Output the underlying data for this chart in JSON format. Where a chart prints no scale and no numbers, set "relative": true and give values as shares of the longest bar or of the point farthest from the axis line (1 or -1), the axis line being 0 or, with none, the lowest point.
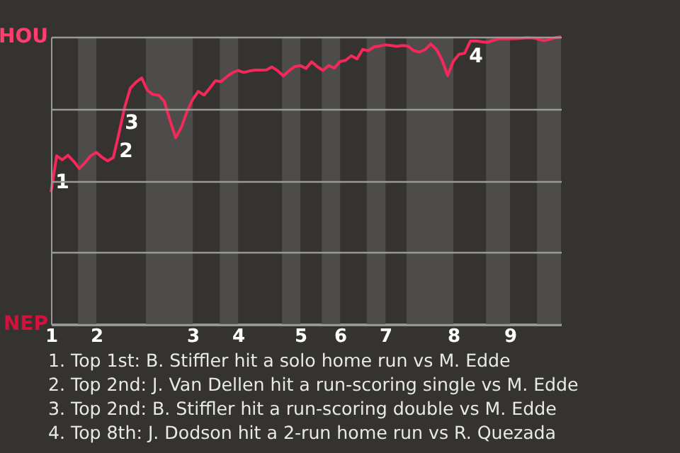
{
  "chart_data": {
    "type": "line",
    "relative": true,
    "categories": [
      "1",
      null,
      null,
      null,
      null,
      null,
      null,
      null,
      "2",
      null,
      null,
      null,
      null,
      null,
      null,
      null,
      null,
      null,
      null,
      null,
      null,
      null,
      null,
      null,
      null,
      "3",
      null,
      null,
      null,
      null,
      null,
      null,
      null,
      "4",
      null,
      null,
      null,
      null,
      null,
      null,
      null,
      null,
      null,
      null,
      "5",
      null,
      null,
      null,
      null,
      null,
      null,
      "6",
      null,
      null,
      null,
      null,
      null,
      null,
      null,
      "7",
      null,
      null,
      null,
      null,
      null,
      null,
      null,
      null,
      null,
      null,
      null,
      "8",
      null,
      null,
      null,
      null,
      null,
      null,
      null,
      null,
      null,
      "9",
      null,
      null,
      null,
      null,
      null,
      null,
      null,
      null,
      null
    ],
    "grid": "y",
    "marker": "none",
    "line_style": "solid",
    "series": [
      {
        "color": "#f5285a",
        "values": [
          0.46,
          0.586,
          0.572,
          0.588,
          0.567,
          0.542,
          0.562,
          0.586,
          0.598,
          0.581,
          0.568,
          0.58,
          0.665,
          0.755,
          0.821,
          0.842,
          0.857,
          0.814,
          0.799,
          0.797,
          0.775,
          0.709,
          0.649,
          0.685,
          0.74,
          0.782,
          0.81,
          0.797,
          0.821,
          0.847,
          0.844,
          0.861,
          0.875,
          0.883,
          0.876,
          0.881,
          0.884,
          0.884,
          0.885,
          0.895,
          0.882,
          0.864,
          0.882,
          0.896,
          0.9,
          0.89,
          0.913,
          0.896,
          0.883,
          0.9,
          0.891,
          0.914,
          0.918,
          0.934,
          0.923,
          0.956,
          0.952,
          0.965,
          0.968,
          0.972,
          0.97,
          0.967,
          0.97,
          0.968,
          0.952,
          0.947,
          0.955,
          0.975,
          0.957,
          0.92,
          0.865,
          0.915,
          0.939,
          0.943,
          0.985,
          0.986,
          0.983,
          0.981,
          0.987,
          0.993,
          0.993,
          0.993,
          0.994,
          0.995,
          0.997,
          0.996,
          0.992,
          0.987,
          0.991,
          0.997,
          1.0
        ]
      }
    ],
    "annotations": [
      "HOU",
      "NEP",
      "1",
      "2",
      "3",
      "4",
      "1. Top 1st: B. Stiffler hit a solo home run vs M. Edde",
      "2. Top 2nd: J. Van Dellen hit a run-scoring single vs M. Edde",
      "3. Top 2nd: B. Stiffler hit a run-scoring double vs M. Edde",
      "4. Top 8th: J. Dodson hit a 2-run home run vs R. Quezada"
    ]
  }
}
